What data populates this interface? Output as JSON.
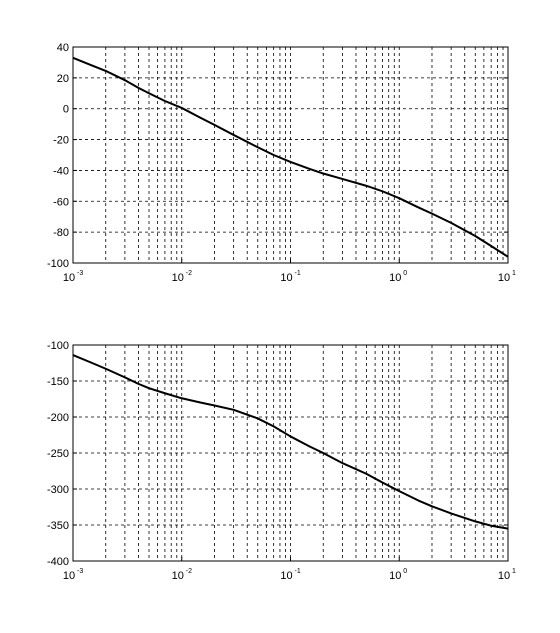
{
  "chart_data": [
    {
      "type": "line",
      "title": "",
      "xlabel": "",
      "ylabel": "",
      "xscale": "log",
      "xlim": [
        0.001,
        10
      ],
      "ylim": [
        -100,
        40
      ],
      "grid": true,
      "x_ticks": [
        {
          "base": "10",
          "exp": "-3"
        },
        {
          "base": "10",
          "exp": "-2"
        },
        {
          "base": "10",
          "exp": "-1"
        },
        {
          "base": "10",
          "exp": "0"
        },
        {
          "base": "10",
          "exp": "1"
        }
      ],
      "y_ticks": [
        "40",
        "20",
        "0",
        "-20",
        "-40",
        "-60",
        "-80",
        "-100"
      ],
      "y_tick_values": [
        40,
        20,
        0,
        -20,
        -40,
        -60,
        -80,
        -100
      ],
      "series": [
        {
          "x": [
            0.001,
            0.0015,
            0.002,
            0.003,
            0.004,
            0.005,
            0.007,
            0.01,
            0.015,
            0.02,
            0.03,
            0.05,
            0.07,
            0.1,
            0.15,
            0.2,
            0.3,
            0.5,
            0.7,
            1,
            1.5,
            2,
            3,
            5,
            7,
            10
          ],
          "y": [
            33,
            28,
            24.5,
            18.5,
            13.5,
            10,
            5,
            0.5,
            -6,
            -10.5,
            -17,
            -25,
            -30,
            -34.5,
            -39,
            -42,
            -45.5,
            -50,
            -53.5,
            -58,
            -64,
            -68,
            -74,
            -82.5,
            -89,
            -96
          ]
        }
      ]
    },
    {
      "type": "line",
      "title": "",
      "xlabel": "",
      "ylabel": "",
      "xscale": "log",
      "xlim": [
        0.001,
        10
      ],
      "ylim": [
        -400,
        -100
      ],
      "grid": true,
      "x_ticks": [
        {
          "base": "10",
          "exp": "-3"
        },
        {
          "base": "10",
          "exp": "-2"
        },
        {
          "base": "10",
          "exp": "-1"
        },
        {
          "base": "10",
          "exp": "0"
        },
        {
          "base": "10",
          "exp": "1"
        }
      ],
      "y_ticks": [
        "-100",
        "-150",
        "-200",
        "-250",
        "-300",
        "-350",
        "-400"
      ],
      "y_tick_values": [
        -100,
        -150,
        -200,
        -250,
        -300,
        -350,
        -400
      ],
      "series": [
        {
          "x": [
            0.001,
            0.0015,
            0.002,
            0.003,
            0.004,
            0.005,
            0.007,
            0.01,
            0.015,
            0.02,
            0.03,
            0.05,
            0.07,
            0.1,
            0.15,
            0.2,
            0.3,
            0.5,
            0.7,
            1,
            1.5,
            2,
            3,
            5,
            7,
            10
          ],
          "y": [
            -114,
            -125,
            -133,
            -145,
            -154,
            -160,
            -167,
            -174,
            -180,
            -184,
            -190,
            -202,
            -213,
            -227,
            -241,
            -250,
            -264,
            -279,
            -291,
            -303,
            -316,
            -324,
            -334,
            -345,
            -351,
            -355
          ]
        }
      ]
    }
  ]
}
